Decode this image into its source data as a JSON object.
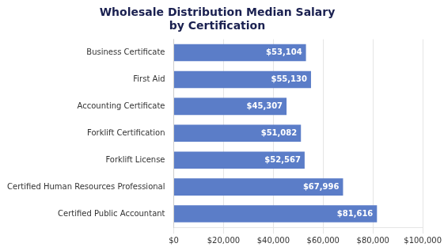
{
  "chart_data": {
    "type": "bar",
    "orientation": "horizontal",
    "title": "Wholesale Distribution Median Salary\nby Certification",
    "categories": [
      "Certified Public Accountant",
      "Certified Human Resources Professional",
      "Forklift License",
      "Forklift Certification",
      "Accounting Certificate",
      "First Aid",
      "Business Certificate"
    ],
    "values": [
      81616,
      67996,
      52567,
      51082,
      45307,
      55130,
      53104
    ],
    "value_labels": [
      "$81,616",
      "$67,996",
      "$52,567",
      "$51,082",
      "$45,307",
      "$55,130",
      "$53,104"
    ],
    "data_labels": true,
    "color": "#5B7DC8",
    "xlim": [
      0,
      100000
    ],
    "xticks": [
      {
        "value": 0,
        "label": "$0"
      },
      {
        "value": 20000,
        "label": "$20,000"
      },
      {
        "value": 40000,
        "label": "$40,000"
      },
      {
        "value": 60000,
        "label": "$60,000"
      },
      {
        "value": 80000,
        "label": "$80,000"
      },
      {
        "value": 100000,
        "label": "$100,000"
      }
    ],
    "grid": true
  }
}
